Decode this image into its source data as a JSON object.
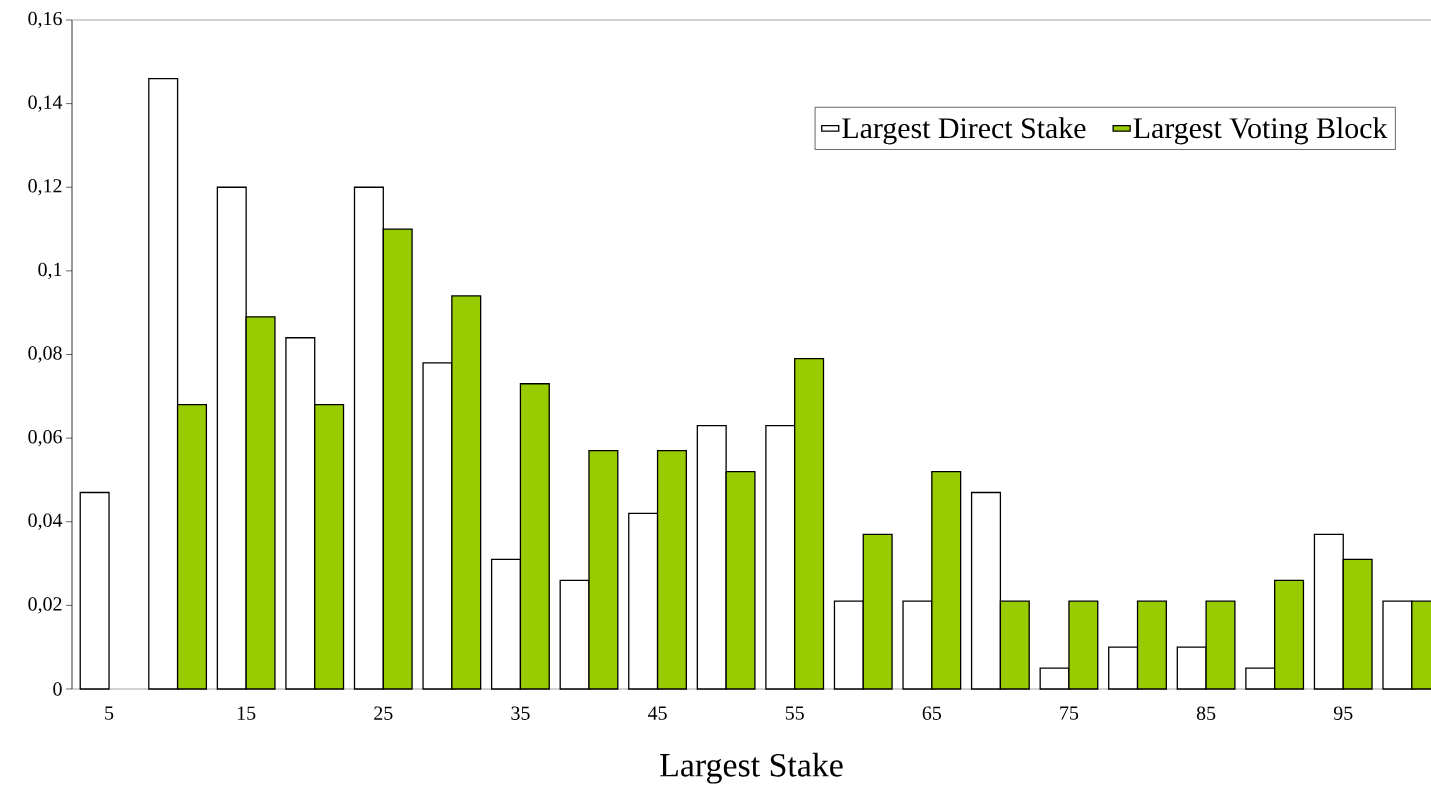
{
  "chart_data": {
    "type": "bar",
    "xlabel": "Largest Stake",
    "categories": [
      "5",
      null,
      "15",
      null,
      "25",
      null,
      "35",
      null,
      "45",
      null,
      "55",
      null,
      "65",
      null,
      "75",
      null,
      "85",
      null,
      "95",
      null
    ],
    "series": [
      {
        "name": "Largest Direct Stake",
        "color": "#ffffff",
        "values": [
          0.047,
          0.146,
          0.12,
          0.084,
          0.12,
          0.078,
          0.031,
          0.026,
          0.042,
          0.063,
          0.063,
          0.021,
          0.021,
          0.047,
          0.005,
          0.01,
          0.01,
          0.005,
          0.037,
          0.021
        ]
      },
      {
        "name": "Largest Voting Block",
        "color": "#99cc00",
        "values": [
          null,
          0.068,
          0.089,
          0.068,
          0.11,
          0.094,
          0.073,
          0.057,
          0.057,
          0.052,
          0.079,
          0.037,
          0.052,
          0.021,
          0.021,
          0.021,
          0.021,
          0.026,
          0.031,
          0.021
        ]
      }
    ],
    "ylim": [
      0,
      0.16
    ],
    "yticks": [
      {
        "value": 0,
        "label": "0"
      },
      {
        "value": 0.02,
        "label": "0,02"
      },
      {
        "value": 0.04,
        "label": "0,04"
      },
      {
        "value": 0.06,
        "label": "0,06"
      },
      {
        "value": 0.08,
        "label": "0,08"
      },
      {
        "value": 0.1,
        "label": "0,1"
      },
      {
        "value": 0.12,
        "label": "0,12"
      },
      {
        "value": 0.14,
        "label": "0,14"
      },
      {
        "value": 0.16,
        "label": "0,16"
      }
    ],
    "grid": false,
    "legend": "top right"
  }
}
